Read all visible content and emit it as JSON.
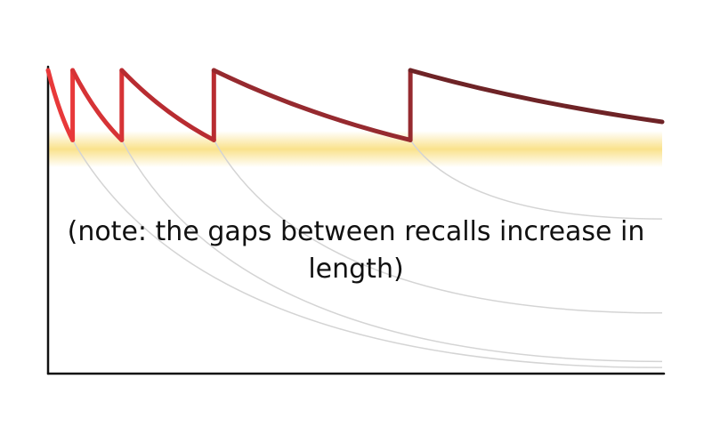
{
  "chart_data": {
    "type": "line",
    "annotation": "(note: the gaps between recalls increase in length)",
    "annotation_lines": [
      "(note: the gaps between recalls increase in length)"
    ],
    "band": {
      "y_range": [
        0.68,
        0.8
      ],
      "color": "#f5c518"
    },
    "xlim": [
      0,
      100
    ],
    "ylim": [
      0,
      1
    ],
    "series": [
      {
        "values": [
          {
            "x": 0,
            "y": 1.0
          },
          {
            "x": 4,
            "y": 0.77
          },
          {
            "x": 4,
            "y": 1.0
          },
          {
            "x": 12,
            "y": 0.77
          },
          {
            "x": 12,
            "y": 1.0
          },
          {
            "x": 27,
            "y": 0.77
          },
          {
            "x": 27,
            "y": 1.0
          },
          {
            "x": 59,
            "y": 0.77
          },
          {
            "x": 59,
            "y": 1.0
          },
          {
            "x": 100,
            "y": 0.83
          }
        ],
        "segment_colors": [
          "#e8393a",
          "#d63336",
          "#b82c31",
          "#962a2f",
          "#6e2326"
        ]
      }
    ],
    "decay_curves": [
      {
        "start_x": 4,
        "start_y": 0.77,
        "end_y": 0.02
      },
      {
        "start_x": 12,
        "start_y": 0.77,
        "end_y": 0.04
      },
      {
        "start_x": 27,
        "start_y": 0.77,
        "end_y": 0.2
      },
      {
        "start_x": 59,
        "start_y": 0.77,
        "end_y": 0.51
      }
    ],
    "colors": {
      "axis": "#111111",
      "decay": "#d4d4d4"
    }
  }
}
